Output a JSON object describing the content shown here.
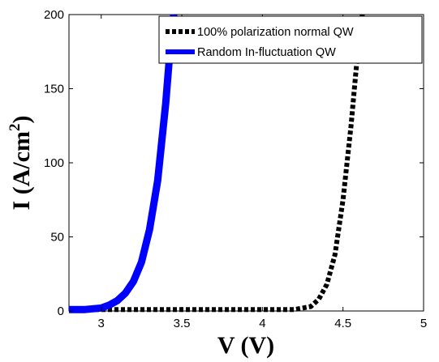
{
  "chart_data": {
    "type": "line",
    "xlabel": "V (V)",
    "ylabel": "I (A/cm",
    "ylabel_sup": "2",
    "ylabel_end": ")",
    "xlim": [
      2.8,
      5.0
    ],
    "ylim": [
      0,
      200
    ],
    "x_ticks": [
      3,
      3.5,
      4,
      4.5,
      5
    ],
    "x_tick_labels": [
      "3",
      "3.5",
      "4",
      "4.5",
      "5"
    ],
    "y_ticks": [
      0,
      50,
      100,
      150,
      200
    ],
    "y_tick_labels": [
      "0",
      "50",
      "100",
      "150",
      "200"
    ],
    "grid": false,
    "legend_position": "top-right",
    "series": [
      {
        "name": "100% polarization normal QW",
        "color": "#000000",
        "style": "dotted",
        "x": [
          2.8,
          3.0,
          3.5,
          4.0,
          4.2,
          4.3,
          4.35,
          4.4,
          4.45,
          4.5,
          4.55,
          4.6,
          4.62
        ],
        "y": [
          1,
          1,
          1,
          1,
          1,
          3,
          8,
          18,
          38,
          75,
          125,
          185,
          200
        ]
      },
      {
        "name": "Random In-fluctuation QW",
        "color": "#0000ff",
        "style": "solid",
        "x": [
          2.8,
          2.9,
          3.0,
          3.05,
          3.1,
          3.15,
          3.2,
          3.25,
          3.3,
          3.35,
          3.4,
          3.43,
          3.45
        ],
        "y": [
          1,
          1,
          2,
          4,
          7,
          12,
          20,
          33,
          55,
          88,
          140,
          180,
          200
        ]
      }
    ]
  }
}
